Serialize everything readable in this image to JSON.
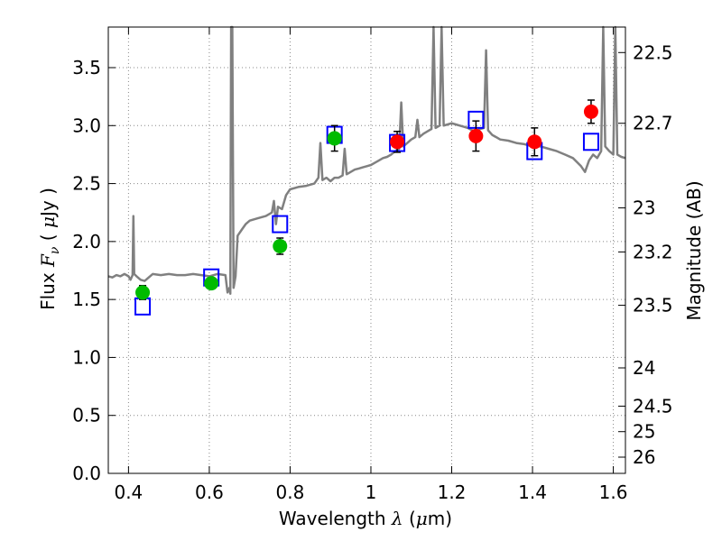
{
  "chart_data": {
    "type": "scatter",
    "xlabel_parts": {
      "pre": "Wavelength  ",
      "sym": "λ",
      "mid": " (",
      "mu": "μ",
      "post": "m)"
    },
    "ylabel_parts": {
      "pre": "Flux  ",
      "sym": "F",
      "sub": "ν",
      "mid": "  ( ",
      "mu": "μ",
      "post": "Jy )"
    },
    "y2label": "Magnitude (AB)",
    "xlim": [
      0.35,
      1.63
    ],
    "ylim": [
      0.0,
      3.85
    ],
    "grid": true,
    "xticks": [
      0.4,
      0.6,
      0.8,
      1.0,
      1.2,
      1.4,
      1.6
    ],
    "xtick_labels": [
      "0.4",
      "0.6",
      "0.8",
      "1",
      "1.2",
      "1.4",
      "1.6"
    ],
    "yticks": [
      0.0,
      0.5,
      1.0,
      1.5,
      2.0,
      2.5,
      3.0,
      3.5
    ],
    "ytick_labels": [
      "0.0",
      "0.5",
      "1.0",
      "1.5",
      "2.0",
      "2.5",
      "3.0",
      "3.5"
    ],
    "mag_ticks": [
      {
        "label": "22.5",
        "flux": 3.63
      },
      {
        "label": "22.7",
        "flux": 3.02
      },
      {
        "label": "23",
        "flux": 2.29
      },
      {
        "label": "23.2",
        "flux": 1.91
      },
      {
        "label": "23.5",
        "flux": 1.45
      },
      {
        "label": "24",
        "flux": 0.91
      },
      {
        "label": "24.5",
        "flux": 0.58
      },
      {
        "label": "25",
        "flux": 0.36
      },
      {
        "label": "26",
        "flux": 0.14
      }
    ],
    "colors": {
      "spectrum": "#808080",
      "optical": "#00bb00",
      "nir": "#ff0000",
      "model": "#0000ff",
      "grid": "#888888"
    },
    "series": [
      {
        "points": [
          {
            "x": 0.435,
            "y": 1.56,
            "err": 0.06
          },
          {
            "x": 0.605,
            "y": 1.64,
            "err": 0.04
          },
          {
            "x": 0.775,
            "y": 1.96,
            "err": 0.07
          },
          {
            "x": 0.91,
            "y": 2.89,
            "err": 0.11
          }
        ]
      },
      {
        "points": [
          {
            "x": 1.065,
            "y": 2.86,
            "err": 0.09
          },
          {
            "x": 1.26,
            "y": 2.91,
            "err": 0.13
          },
          {
            "x": 1.405,
            "y": 2.86,
            "err": 0.12
          },
          {
            "x": 1.545,
            "y": 3.12,
            "err": 0.1
          }
        ]
      },
      {
        "points": [
          {
            "x": 0.435,
            "y": 1.44
          },
          {
            "x": 0.605,
            "y": 1.69
          },
          {
            "x": 0.775,
            "y": 2.15
          },
          {
            "x": 0.91,
            "y": 2.92
          },
          {
            "x": 1.065,
            "y": 2.85
          },
          {
            "x": 1.26,
            "y": 3.05
          },
          {
            "x": 1.405,
            "y": 2.78
          },
          {
            "x": 1.545,
            "y": 2.86
          }
        ]
      }
    ],
    "spectrum": [
      [
        0.35,
        1.7
      ],
      [
        0.36,
        1.69
      ],
      [
        0.37,
        1.71
      ],
      [
        0.38,
        1.7
      ],
      [
        0.39,
        1.72
      ],
      [
        0.4,
        1.7
      ],
      [
        0.405,
        1.67
      ],
      [
        0.41,
        1.71
      ],
      [
        0.412,
        2.22
      ],
      [
        0.414,
        1.72
      ],
      [
        0.42,
        1.7
      ],
      [
        0.43,
        1.67
      ],
      [
        0.44,
        1.66
      ],
      [
        0.45,
        1.69
      ],
      [
        0.46,
        1.72
      ],
      [
        0.48,
        1.71
      ],
      [
        0.5,
        1.72
      ],
      [
        0.52,
        1.71
      ],
      [
        0.54,
        1.71
      ],
      [
        0.56,
        1.72
      ],
      [
        0.58,
        1.71
      ],
      [
        0.6,
        1.7
      ],
      [
        0.62,
        1.72
      ],
      [
        0.64,
        1.71
      ],
      [
        0.645,
        1.56
      ],
      [
        0.65,
        1.6
      ],
      [
        0.652,
        1.55
      ],
      [
        0.654,
        3.85
      ],
      [
        0.657,
        3.85
      ],
      [
        0.66,
        1.6
      ],
      [
        0.665,
        1.7
      ],
      [
        0.67,
        2.05
      ],
      [
        0.68,
        2.1
      ],
      [
        0.69,
        2.15
      ],
      [
        0.7,
        2.18
      ],
      [
        0.72,
        2.2
      ],
      [
        0.74,
        2.22
      ],
      [
        0.755,
        2.25
      ],
      [
        0.76,
        2.35
      ],
      [
        0.765,
        2.15
      ],
      [
        0.77,
        2.3
      ],
      [
        0.78,
        2.28
      ],
      [
        0.79,
        2.4
      ],
      [
        0.8,
        2.45
      ],
      [
        0.82,
        2.47
      ],
      [
        0.84,
        2.48
      ],
      [
        0.86,
        2.5
      ],
      [
        0.87,
        2.55
      ],
      [
        0.875,
        2.85
      ],
      [
        0.88,
        2.53
      ],
      [
        0.89,
        2.55
      ],
      [
        0.9,
        2.52
      ],
      [
        0.91,
        2.55
      ],
      [
        0.92,
        2.55
      ],
      [
        0.93,
        2.57
      ],
      [
        0.935,
        2.8
      ],
      [
        0.94,
        2.58
      ],
      [
        0.95,
        2.6
      ],
      [
        0.96,
        2.62
      ],
      [
        0.97,
        2.63
      ],
      [
        0.98,
        2.64
      ],
      [
        0.99,
        2.65
      ],
      [
        1.0,
        2.66
      ],
      [
        1.01,
        2.68
      ],
      [
        1.02,
        2.7
      ],
      [
        1.03,
        2.72
      ],
      [
        1.04,
        2.73
      ],
      [
        1.05,
        2.75
      ],
      [
        1.06,
        2.78
      ],
      [
        1.07,
        2.8
      ],
      [
        1.075,
        3.2
      ],
      [
        1.08,
        2.82
      ],
      [
        1.09,
        2.85
      ],
      [
        1.1,
        2.88
      ],
      [
        1.11,
        2.9
      ],
      [
        1.115,
        3.05
      ],
      [
        1.12,
        2.9
      ],
      [
        1.13,
        2.93
      ],
      [
        1.14,
        2.95
      ],
      [
        1.15,
        2.97
      ],
      [
        1.155,
        3.85
      ],
      [
        1.16,
        2.98
      ],
      [
        1.17,
        3.0
      ],
      [
        1.175,
        3.85
      ],
      [
        1.18,
        3.0
      ],
      [
        1.19,
        3.01
      ],
      [
        1.2,
        3.02
      ],
      [
        1.21,
        3.01
      ],
      [
        1.22,
        3.0
      ],
      [
        1.23,
        2.99
      ],
      [
        1.24,
        2.98
      ],
      [
        1.25,
        2.96
      ],
      [
        1.26,
        2.95
      ],
      [
        1.27,
        2.97
      ],
      [
        1.28,
        2.98
      ],
      [
        1.285,
        3.65
      ],
      [
        1.29,
        2.96
      ],
      [
        1.3,
        2.92
      ],
      [
        1.31,
        2.9
      ],
      [
        1.32,
        2.88
      ],
      [
        1.34,
        2.87
      ],
      [
        1.36,
        2.85
      ],
      [
        1.38,
        2.84
      ],
      [
        1.4,
        2.82
      ],
      [
        1.42,
        2.82
      ],
      [
        1.44,
        2.8
      ],
      [
        1.46,
        2.78
      ],
      [
        1.48,
        2.75
      ],
      [
        1.5,
        2.72
      ],
      [
        1.52,
        2.65
      ],
      [
        1.53,
        2.6
      ],
      [
        1.54,
        2.7
      ],
      [
        1.55,
        2.75
      ],
      [
        1.56,
        2.72
      ],
      [
        1.57,
        2.78
      ],
      [
        1.575,
        3.85
      ],
      [
        1.58,
        2.82
      ],
      [
        1.59,
        2.78
      ],
      [
        1.6,
        2.75
      ],
      [
        1.605,
        3.85
      ],
      [
        1.61,
        2.75
      ],
      [
        1.62,
        2.73
      ],
      [
        1.63,
        2.72
      ]
    ]
  }
}
